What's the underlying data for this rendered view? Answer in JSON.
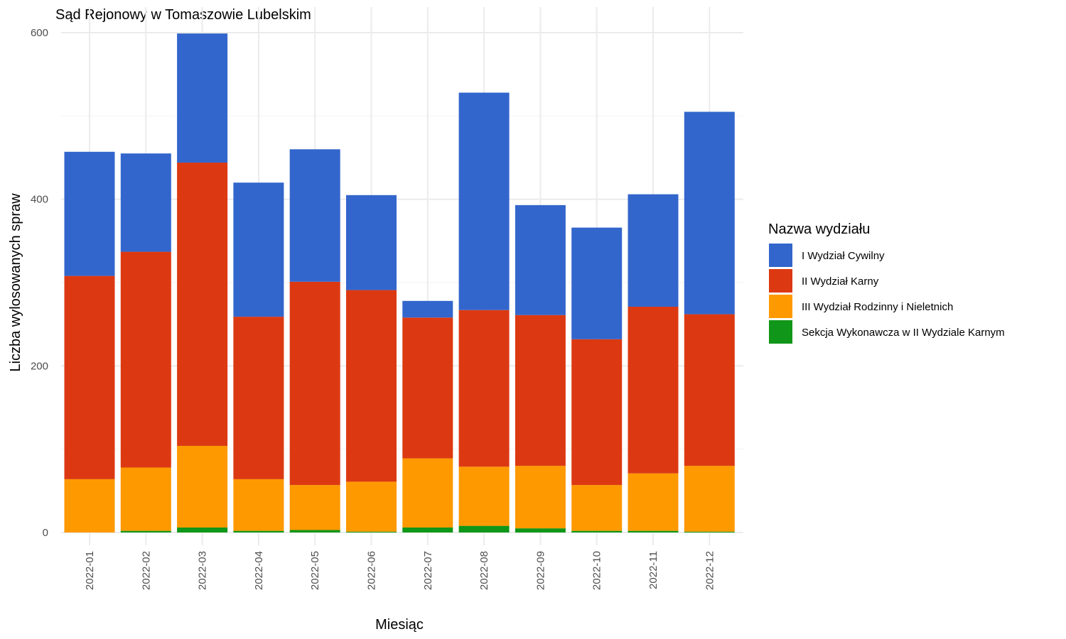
{
  "chart_data": {
    "type": "bar",
    "stacked": true,
    "title": "Sąd Rejonowy w Tomaszowie Lubelskim",
    "xlabel": "Miesiąc",
    "ylabel": "Liczba wylosowanych spraw",
    "ylim": [
      0,
      600
    ],
    "yticks": [
      0,
      200,
      400,
      600
    ],
    "grid": true,
    "legend_title": "Nazwa wydziału",
    "legend_position": "right",
    "categories": [
      "2022-01",
      "2022-02",
      "2022-03",
      "2022-04",
      "2022-05",
      "2022-06",
      "2022-07",
      "2022-08",
      "2022-09",
      "2022-10",
      "2022-11",
      "2022-12"
    ],
    "series": [
      {
        "name": "I Wydział Cywilny",
        "color": "#3366cc",
        "values": [
          149,
          118,
          155,
          161,
          159,
          114,
          20,
          261,
          132,
          134,
          135,
          243
        ]
      },
      {
        "name": "II Wydział Karny",
        "color": "#dc3912",
        "values": [
          244,
          259,
          340,
          195,
          244,
          230,
          169,
          188,
          181,
          175,
          200,
          182
        ]
      },
      {
        "name": "III Wydział Rodzinny i Nieletnich",
        "color": "#ff9900",
        "values": [
          64,
          76,
          98,
          62,
          54,
          60,
          83,
          71,
          75,
          55,
          69,
          79
        ]
      },
      {
        "name": "Sekcja Wykonawcza w II Wydziale Karnym",
        "color": "#109618",
        "values": [
          0,
          2,
          6,
          2,
          3,
          1,
          6,
          8,
          5,
          2,
          2,
          1
        ]
      }
    ]
  }
}
